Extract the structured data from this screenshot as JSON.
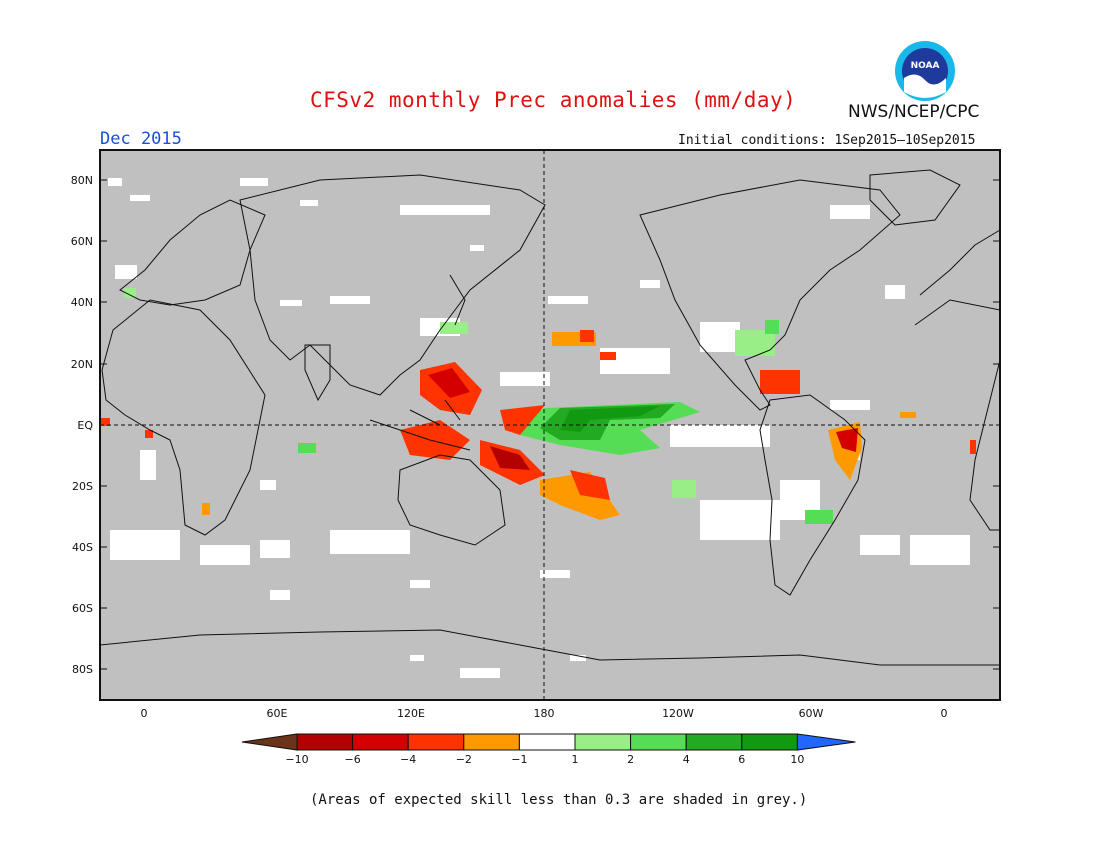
{
  "header": {
    "title": "CFSv2 monthly Prec anomalies (mm/day)",
    "month": "Dec 2015",
    "initial_conditions": "Initial conditions: 1Sep2015—10Sep2015",
    "agency": "NWS/NCEP/CPC",
    "logo_text": "NOAA"
  },
  "map": {
    "lat_labels": [
      "80N",
      "60N",
      "40N",
      "20N",
      "EQ",
      "20S",
      "40S",
      "60S",
      "80S"
    ],
    "lon_labels": [
      "0",
      "60E",
      "120E",
      "180",
      "120W",
      "60W",
      "0"
    ],
    "background_color": "#c0c0c0",
    "near_zero_color": "#ffffff"
  },
  "colorbar": {
    "colors": [
      "#6b3419",
      "#b30000",
      "#d40000",
      "#ff3300",
      "#ff9900",
      "#ffffff",
      "#99ee88",
      "#55dd55",
      "#22aa22",
      "#119911",
      "#2266ff"
    ],
    "tick_labels": [
      "−10",
      "−6",
      "−4",
      "−2",
      "−1",
      "1",
      "2",
      "4",
      "6",
      "10"
    ]
  },
  "footnote": "(Areas of expected skill less than 0.3 are shaded in grey.)"
}
